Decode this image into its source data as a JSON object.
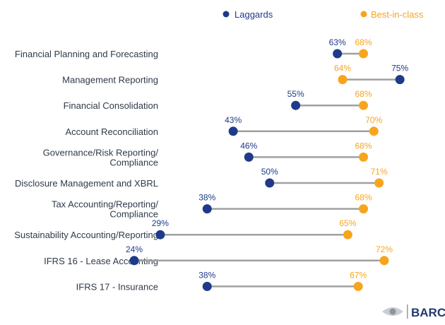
{
  "chart_data": {
    "type": "dumbbell",
    "legend": {
      "placement": "top-right",
      "items": [
        "Laggards",
        "Best-in-class"
      ]
    },
    "colors": {
      "Laggards": "#1f3a8a",
      "Best-in-class": "#f7a51c",
      "connector": "#a0a0a0",
      "label_text": "#2f3a4a"
    },
    "categories": [
      [
        "Financial Planning and Forecasting"
      ],
      [
        "Management Reporting"
      ],
      [
        "Financial Consolidation"
      ],
      [
        "Account Reconciliation"
      ],
      [
        "Governance/Risk Reporting/",
        "Compliance"
      ],
      [
        "Disclosure Management and XBRL"
      ],
      [
        "Tax Accounting/Reporting/",
        "Compliance"
      ],
      [
        "Sustainability Accounting/Reporting"
      ],
      [
        "IFRS 16 - Lease Accounting"
      ],
      [
        "IFRS 17 - Insurance"
      ]
    ],
    "series": [
      {
        "name": "Laggards",
        "values": [
          63,
          75,
          55,
          43,
          46,
          50,
          38,
          29,
          24,
          38
        ]
      },
      {
        "name": "Best-in-class",
        "values": [
          68,
          64,
          68,
          70,
          68,
          71,
          68,
          65,
          72,
          67
        ]
      }
    ],
    "value_suffix": "%",
    "xlim": [
      0,
      100
    ],
    "grid": false
  },
  "brand": {
    "logo_text": "BARC"
  }
}
